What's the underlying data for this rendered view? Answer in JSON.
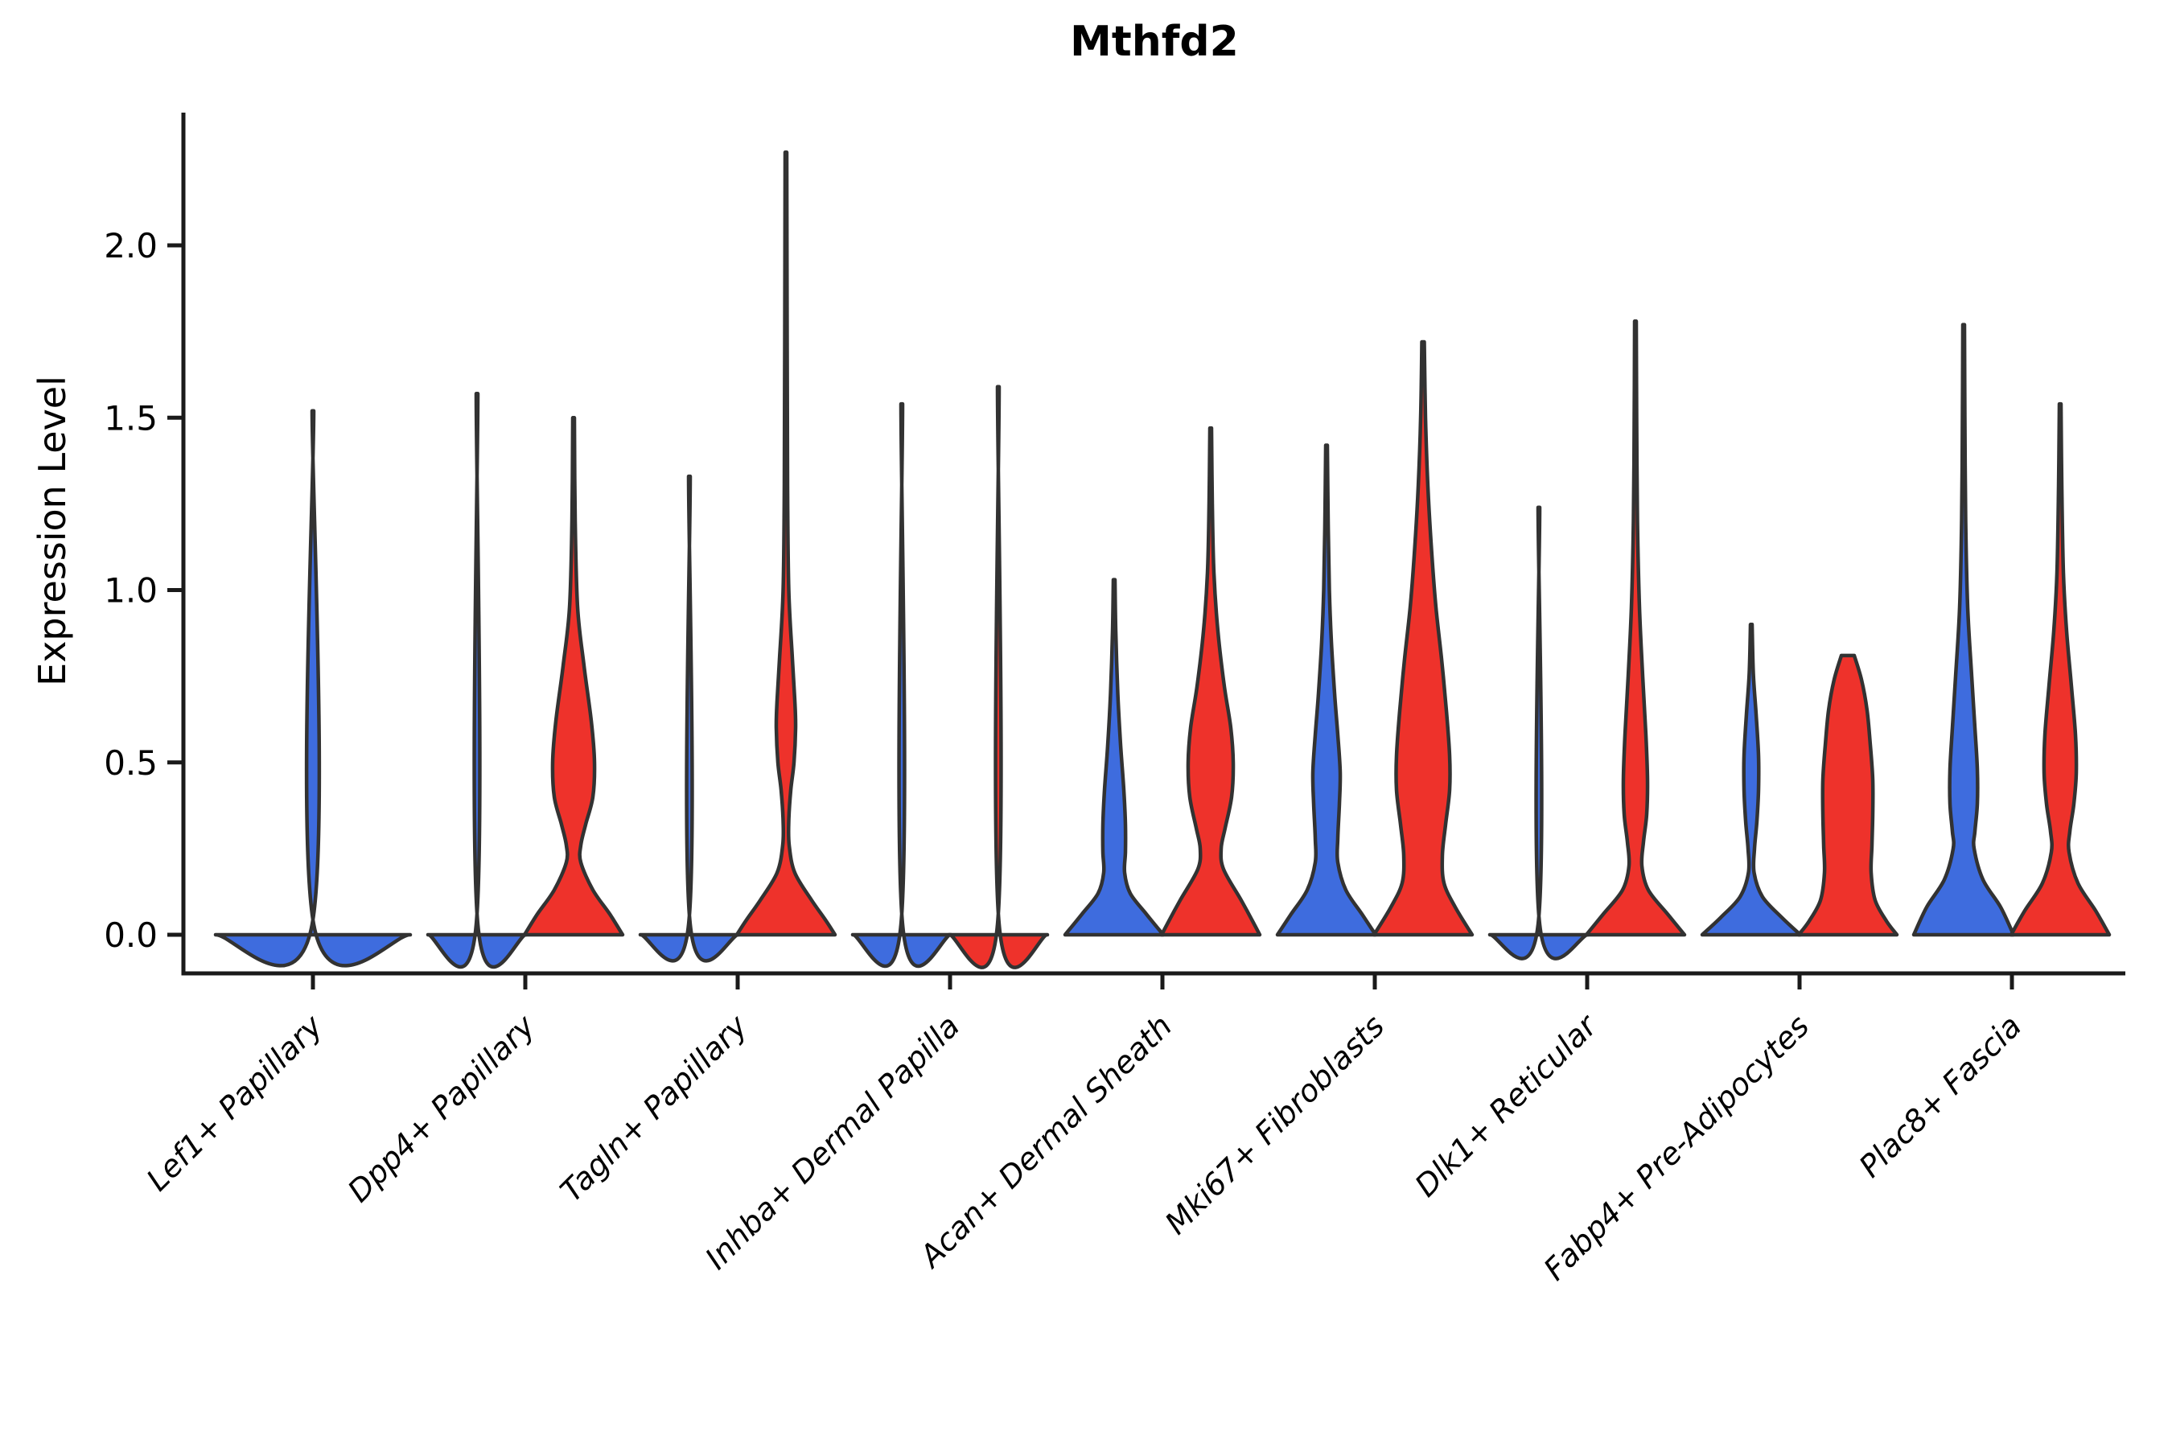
{
  "chart_data": {
    "type": "violin",
    "title": "Mthfd2",
    "ylabel": "Expression Level",
    "xlabel": "",
    "yticks": [
      "0.0",
      "0.5",
      "1.0",
      "1.5",
      "2.0"
    ],
    "ytick_values": [
      0.0,
      0.5,
      1.0,
      1.5,
      2.0
    ],
    "ylim": [
      -0.11,
      2.38
    ],
    "grid": false,
    "legend": "none",
    "categories": [
      "Lef1+ Papillary",
      "Dpp4+ Papillary",
      "Tagln+ Papillary",
      "Inhba+ Dermal Papilla",
      "Acan+ Dermal Sheath",
      "Mki67+ Fibroblasts",
      "Dlk1+ Reticular",
      "Fabp4+ Pre-Adipocytes",
      "Plac8+ Fascia"
    ],
    "series": [
      {
        "key": "blue",
        "color": "#3E6CDE"
      },
      {
        "key": "red",
        "color": "#EE322B"
      }
    ],
    "stroke_color": "#323232",
    "axis_color": "#1a1a1a",
    "violin_note": "profile = list of [expression_value, half_width_px]; half-slot width = 60px; flat-at-zero violins collapse to a baseline segment plus a thin outlier spike",
    "violins": [
      {
        "category_index": 0,
        "side": "center",
        "color_key": "blue",
        "max_value": 1.52,
        "profile": [
          [
            1.52,
            1
          ],
          [
            0.03,
            1
          ],
          [
            0,
            121
          ]
        ]
      },
      {
        "category_index": 1,
        "side": "blue",
        "color_key": "blue",
        "max_value": 1.57,
        "profile": [
          [
            1.57,
            1
          ],
          [
            0.03,
            1
          ],
          [
            0,
            61
          ]
        ]
      },
      {
        "category_index": 1,
        "side": "red",
        "color_key": "red",
        "max_value": 1.5,
        "profile": [
          [
            1.5,
            1
          ],
          [
            1.2,
            2
          ],
          [
            0.95,
            5
          ],
          [
            0.78,
            13
          ],
          [
            0.62,
            22
          ],
          [
            0.5,
            26
          ],
          [
            0.4,
            24
          ],
          [
            0.32,
            15
          ],
          [
            0.26,
            9
          ],
          [
            0.21,
            9
          ],
          [
            0.13,
            24
          ],
          [
            0.06,
            45
          ],
          [
            0,
            61
          ]
        ]
      },
      {
        "category_index": 2,
        "side": "blue",
        "color_key": "blue",
        "max_value": 1.33,
        "profile": [
          [
            1.33,
            1
          ],
          [
            0.03,
            1
          ],
          [
            0,
            61
          ]
        ]
      },
      {
        "category_index": 2,
        "side": "red",
        "color_key": "red",
        "max_value": 2.27,
        "profile": [
          [
            2.27,
            1
          ],
          [
            1.7,
            1.5
          ],
          [
            1.3,
            2
          ],
          [
            1.0,
            3.5
          ],
          [
            0.8,
            8
          ],
          [
            0.68,
            11
          ],
          [
            0.6,
            12
          ],
          [
            0.5,
            10
          ],
          [
            0.42,
            6
          ],
          [
            0.33,
            3.5
          ],
          [
            0.26,
            4
          ],
          [
            0.18,
            11
          ],
          [
            0.1,
            32
          ],
          [
            0.04,
            50
          ],
          [
            0,
            61
          ]
        ]
      },
      {
        "category_index": 3,
        "side": "blue",
        "color_key": "blue",
        "max_value": 1.54,
        "profile": [
          [
            1.54,
            1
          ],
          [
            0.03,
            1
          ],
          [
            0,
            61
          ]
        ]
      },
      {
        "category_index": 3,
        "side": "red",
        "color_key": "red",
        "max_value": 1.59,
        "profile": [
          [
            1.59,
            1
          ],
          [
            0.03,
            1
          ],
          [
            0,
            61
          ]
        ]
      },
      {
        "category_index": 4,
        "side": "blue",
        "color_key": "blue",
        "max_value": 1.03,
        "profile": [
          [
            1.03,
            1
          ],
          [
            0.88,
            2
          ],
          [
            0.7,
            4.5
          ],
          [
            0.55,
            8
          ],
          [
            0.42,
            12
          ],
          [
            0.32,
            14
          ],
          [
            0.24,
            14
          ],
          [
            0.18,
            13
          ],
          [
            0.12,
            20
          ],
          [
            0.06,
            40
          ],
          [
            0,
            61
          ]
        ]
      },
      {
        "category_index": 4,
        "side": "red",
        "color_key": "red",
        "max_value": 1.47,
        "profile": [
          [
            1.47,
            1
          ],
          [
            1.25,
            2
          ],
          [
            1.05,
            4
          ],
          [
            0.88,
            9
          ],
          [
            0.72,
            17
          ],
          [
            0.6,
            25
          ],
          [
            0.5,
            28
          ],
          [
            0.4,
            26
          ],
          [
            0.31,
            18
          ],
          [
            0.25,
            13
          ],
          [
            0.19,
            16
          ],
          [
            0.1,
            38
          ],
          [
            0.04,
            52
          ],
          [
            0,
            61
          ]
        ]
      },
      {
        "category_index": 5,
        "side": "blue",
        "color_key": "blue",
        "max_value": 1.42,
        "profile": [
          [
            1.42,
            1
          ],
          [
            1.2,
            2
          ],
          [
            1.0,
            3.5
          ],
          [
            0.85,
            6
          ],
          [
            0.7,
            10
          ],
          [
            0.58,
            14
          ],
          [
            0.47,
            17
          ],
          [
            0.38,
            16
          ],
          [
            0.28,
            14
          ],
          [
            0.21,
            14
          ],
          [
            0.13,
            24
          ],
          [
            0.06,
            44
          ],
          [
            0,
            61
          ]
        ]
      },
      {
        "category_index": 5,
        "side": "red",
        "color_key": "red",
        "max_value": 1.72,
        "profile": [
          [
            1.72,
            1.5
          ],
          [
            1.5,
            3
          ],
          [
            1.3,
            6
          ],
          [
            1.1,
            11
          ],
          [
            0.95,
            16
          ],
          [
            0.8,
            23
          ],
          [
            0.65,
            29
          ],
          [
            0.52,
            33
          ],
          [
            0.42,
            33
          ],
          [
            0.32,
            28
          ],
          [
            0.23,
            24
          ],
          [
            0.15,
            26
          ],
          [
            0.08,
            40
          ],
          [
            0,
            61
          ]
        ]
      },
      {
        "category_index": 6,
        "side": "blue",
        "color_key": "blue",
        "max_value": 1.24,
        "profile": [
          [
            1.24,
            1
          ],
          [
            0.03,
            1
          ],
          [
            0,
            61
          ]
        ]
      },
      {
        "category_index": 6,
        "side": "red",
        "color_key": "red",
        "max_value": 1.78,
        "profile": [
          [
            1.78,
            1
          ],
          [
            1.5,
            1.5
          ],
          [
            1.2,
            2.5
          ],
          [
            0.95,
            5
          ],
          [
            0.75,
            9
          ],
          [
            0.58,
            13
          ],
          [
            0.45,
            15
          ],
          [
            0.35,
            14
          ],
          [
            0.27,
            10
          ],
          [
            0.2,
            8
          ],
          [
            0.13,
            16
          ],
          [
            0.06,
            40
          ],
          [
            0,
            61
          ]
        ]
      },
      {
        "category_index": 7,
        "side": "blue",
        "color_key": "blue",
        "max_value": 0.9,
        "profile": [
          [
            0.9,
            1
          ],
          [
            0.76,
            2.5
          ],
          [
            0.64,
            6
          ],
          [
            0.52,
            9
          ],
          [
            0.42,
            9
          ],
          [
            0.33,
            7
          ],
          [
            0.25,
            4
          ],
          [
            0.18,
            3.5
          ],
          [
            0.11,
            14
          ],
          [
            0.05,
            38
          ],
          [
            0,
            61
          ]
        ]
      },
      {
        "category_index": 7,
        "side": "red",
        "color_key": "red",
        "max_value": 0.81,
        "profile": [
          [
            0.81,
            8
          ],
          [
            0.74,
            17
          ],
          [
            0.65,
            24
          ],
          [
            0.55,
            28
          ],
          [
            0.45,
            31
          ],
          [
            0.35,
            31
          ],
          [
            0.26,
            30
          ],
          [
            0.18,
            29
          ],
          [
            0.1,
            34
          ],
          [
            0.04,
            48
          ],
          [
            0,
            61
          ]
        ]
      },
      {
        "category_index": 8,
        "side": "blue",
        "color_key": "blue",
        "max_value": 1.77,
        "profile": [
          [
            1.77,
            1
          ],
          [
            1.5,
            1.5
          ],
          [
            1.2,
            2.5
          ],
          [
            0.95,
            5
          ],
          [
            0.75,
            10
          ],
          [
            0.6,
            14
          ],
          [
            0.48,
            17
          ],
          [
            0.38,
            17
          ],
          [
            0.3,
            14
          ],
          [
            0.25,
            13
          ],
          [
            0.16,
            24
          ],
          [
            0.08,
            46
          ],
          [
            0,
            62
          ]
        ]
      },
      {
        "category_index": 8,
        "side": "red",
        "color_key": "red",
        "max_value": 1.54,
        "profile": [
          [
            1.54,
            1
          ],
          [
            1.3,
            2
          ],
          [
            1.05,
            4
          ],
          [
            0.88,
            8
          ],
          [
            0.72,
            14
          ],
          [
            0.58,
            19
          ],
          [
            0.47,
            20
          ],
          [
            0.38,
            17
          ],
          [
            0.3,
            12
          ],
          [
            0.24,
            11
          ],
          [
            0.15,
            22
          ],
          [
            0.07,
            44
          ],
          [
            0,
            61
          ]
        ]
      }
    ]
  }
}
